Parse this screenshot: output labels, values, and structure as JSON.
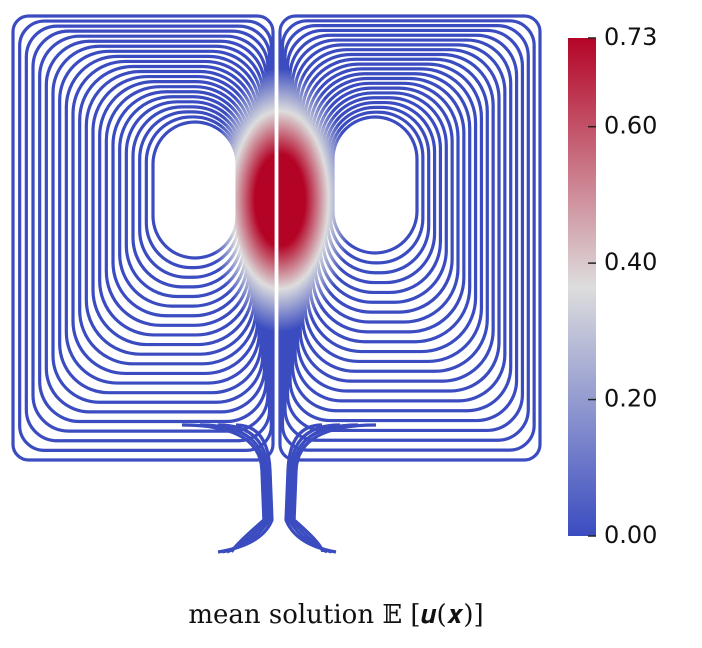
{
  "chart_data": {
    "type": "streamline",
    "caption": "mean solution 𝔼 [𝒖(𝒙)]",
    "colormap": [
      "#3b4cc0",
      "#dddddd",
      "#b40426"
    ],
    "clim": [
      0,
      0.73
    ],
    "cticks": [
      {
        "value": 0,
        "label": "0.00"
      },
      {
        "value": 0.2,
        "label": "0.20"
      },
      {
        "value": 0.4,
        "label": "0.40"
      },
      {
        "value": 0.6,
        "label": "0.60"
      },
      {
        "value": 0.73,
        "label": "0.73"
      }
    ]
  }
}
